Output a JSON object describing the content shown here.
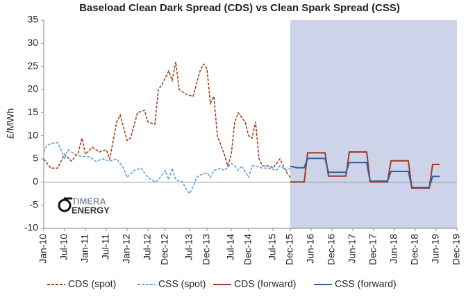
{
  "chart_data": {
    "type": "line",
    "title": "Baseload  Clean Dark Spread (CDS) vs Clean Spark Spread (CSS)",
    "y_label": "£/MWh",
    "ylim": [
      -10,
      35
    ],
    "yticks": [
      -10,
      -5,
      0,
      5,
      10,
      15,
      20,
      25,
      30,
      35
    ],
    "xlim": [
      "Jan-10",
      "Dec-19"
    ],
    "xticks": [
      "Jan-10",
      "Jul-10",
      "Jan-11",
      "Jul-11",
      "Jan-12",
      "Jul-12",
      "Dec-12",
      "Jul-13",
      "Dec-13",
      "Jul-14",
      "Dec-14",
      "Jul-15",
      "Dec-15",
      "Jun-16",
      "Dec-16",
      "Jun-17",
      "Dec-17",
      "Jun-18",
      "Dec-18",
      "Jun-19",
      "Dec-19"
    ],
    "shaded_region": {
      "from": "Dec-15",
      "to": "Dec-19",
      "color": "#cdd3e8"
    },
    "legend": "bottom",
    "logo": [
      "TIMERA",
      "ENERGY"
    ],
    "series": [
      {
        "name": "CDS (spot)",
        "color": "#a5421c",
        "dash": true,
        "x": [
          "Jan-10",
          "Mar-10",
          "May-10",
          "Jul-10",
          "Sep-10",
          "Nov-10",
          "Dec-10",
          "Jan-11",
          "Mar-11",
          "May-11",
          "Jul-11",
          "Aug-11",
          "Oct-11",
          "Nov-11",
          "Jan-12",
          "Feb-12",
          "Apr-12",
          "Jun-12",
          "Jul-12",
          "Sep-12",
          "Oct-12",
          "Nov-12",
          "Jan-13",
          "Feb-13",
          "Mar-13",
          "Apr-13",
          "Jun-13",
          "Aug-13",
          "Oct-13",
          "Nov-13",
          "Dec-13",
          "Jan-14",
          "Feb-14",
          "Mar-14",
          "May-14",
          "Jun-14",
          "Jul-14",
          "Aug-14",
          "Sep-14",
          "Nov-14",
          "Dec-14",
          "Jan-15",
          "Feb-15",
          "Mar-15",
          "Apr-15",
          "Jun-15",
          "Jul-15",
          "Sep-15",
          "Oct-15",
          "Nov-15",
          "Dec-15"
        ],
        "values": [
          5,
          3,
          3,
          6,
          4.5,
          6.5,
          9.5,
          6,
          7.5,
          6.5,
          7,
          5,
          13,
          14.5,
          9,
          9.5,
          15,
          15.5,
          13,
          12.5,
          20,
          21,
          24,
          22,
          26,
          20,
          19,
          18.5,
          24,
          25.5,
          24.5,
          17,
          18.5,
          10,
          6,
          3.5,
          6,
          13,
          15,
          13,
          10,
          9.5,
          13,
          5,
          3.5,
          3.5,
          3,
          5,
          3.5,
          2,
          1
        ]
      },
      {
        "name": "CSS (spot)",
        "color": "#5ba3d9",
        "dash": true,
        "x": [
          "Jan-10",
          "Feb-10",
          "Apr-10",
          "May-10",
          "Jun-10",
          "Jul-10",
          "Aug-10",
          "Oct-10",
          "Dec-10",
          "Feb-11",
          "Apr-11",
          "Jun-11",
          "Aug-11",
          "Oct-11",
          "Dec-11",
          "Jan-12",
          "Mar-12",
          "May-12",
          "Jul-12",
          "Sep-12",
          "Oct-12",
          "Dec-12",
          "Jan-13",
          "Feb-13",
          "Mar-13",
          "May-13",
          "Jun-13",
          "Jul-13",
          "Aug-13",
          "Sep-13",
          "Oct-13",
          "Dec-13",
          "Jan-14",
          "Feb-14",
          "Apr-14",
          "May-14",
          "Jul-14",
          "Aug-14",
          "Sep-14",
          "Oct-14",
          "Dec-14",
          "Jan-15",
          "Feb-15",
          "Apr-15",
          "Jun-15",
          "Aug-15",
          "Sep-15",
          "Nov-15",
          "Dec-15"
        ],
        "values": [
          6.5,
          8,
          8.5,
          8.5,
          7,
          5,
          7,
          6,
          5.5,
          5.5,
          4.5,
          5,
          4.5,
          5,
          3,
          1,
          2.5,
          3,
          1,
          0,
          0.5,
          2.5,
          0.5,
          3,
          0.5,
          0,
          -1.5,
          -2.5,
          -1,
          1,
          1.5,
          2,
          1,
          2.5,
          3,
          2.5,
          4,
          3.5,
          2.5,
          3.5,
          1,
          3.5,
          3.5,
          3,
          3,
          2.5,
          3.5,
          2.5,
          3
        ]
      },
      {
        "name": "CDS (forward)",
        "color": "#9e3a26",
        "dash": false,
        "x": [
          "Dec-15",
          "Apr-16",
          "May-16",
          "Oct-16",
          "Nov-16",
          "Apr-17",
          "May-17",
          "Oct-17",
          "Nov-17",
          "Apr-18",
          "May-18",
          "Oct-18",
          "Nov-18",
          "Apr-19",
          "May-19",
          "Jul-19"
        ],
        "values": [
          0,
          0,
          6.3,
          6.3,
          1.3,
          1.3,
          6.5,
          6.5,
          0,
          0,
          4.6,
          4.6,
          -1.3,
          -1.3,
          3.8,
          3.8
        ]
      },
      {
        "name": "CSS (forward)",
        "color": "#2e5f9e",
        "dash": false,
        "x": [
          "Dec-15",
          "Feb-16",
          "Apr-16",
          "May-16",
          "Oct-16",
          "Nov-16",
          "Apr-17",
          "May-17",
          "Oct-17",
          "Nov-17",
          "Apr-18",
          "May-18",
          "Oct-18",
          "Nov-18",
          "Apr-19",
          "May-19",
          "Jul-19"
        ],
        "values": [
          3.4,
          3.1,
          3.1,
          5.1,
          5.1,
          2.1,
          2.1,
          4.2,
          4.2,
          0.2,
          0.2,
          2.3,
          2.3,
          -1.2,
          -1.2,
          1.2,
          1.2
        ]
      }
    ]
  }
}
